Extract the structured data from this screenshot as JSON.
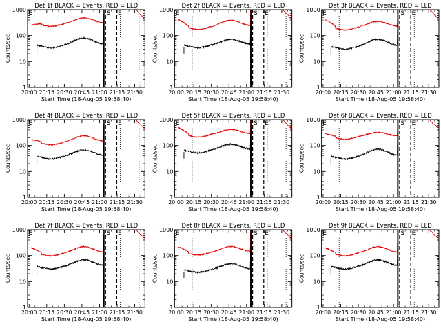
{
  "chart_data": {
    "type": "line",
    "y_scale": "log",
    "ylim": [
      1,
      1000
    ],
    "y_tick_labels": [
      "1",
      "10",
      "100",
      "1000"
    ],
    "y_ticks": [
      1,
      10,
      100,
      1000
    ],
    "ylabel": "Counts/sec",
    "xlabel": "Start Time (18-Aug-05 19:58:40)",
    "x_tick_labels": [
      "20:00",
      "20:15",
      "20:30",
      "20:45",
      "21:00",
      "21:15",
      "21:30"
    ],
    "x_ticks_min": [
      1.33,
      16.33,
      31.33,
      46.33,
      61.33,
      76.33,
      91.33
    ],
    "xlim_min": [
      0,
      100
    ],
    "markers": [
      {
        "label": "S",
        "x_min": 66.5,
        "style": "dashed"
      },
      {
        "label": "E",
        "x_min": 76.0,
        "style": "dashed"
      }
    ],
    "vlines_dotted_min": [
      15.0,
      79.0,
      95.0
    ],
    "vlines_solid_min": [
      65.0
    ],
    "panels": [
      {
        "title": "Det 1f BLACK = Events, RED = LLD",
        "events_base": 45,
        "lld_base": 300,
        "lld_start": 250,
        "events_bump": 1.8,
        "lld_bump": 1.6
      },
      {
        "title": "Det 2f BLACK = Events, RED = LLD",
        "events_base": 45,
        "lld_base": 230,
        "lld_start": 420,
        "events_bump": 1.6,
        "lld_bump": 1.7
      },
      {
        "title": "Det 3f BLACK = Events, RED = LLD",
        "events_base": 40,
        "lld_base": 220,
        "lld_start": 420,
        "events_bump": 1.8,
        "lld_bump": 1.6
      },
      {
        "title": "Det 4f BLACK = Events, RED = LLD",
        "events_base": 40,
        "lld_base": 140,
        "lld_start": 170,
        "events_bump": 1.7,
        "lld_bump": 1.7
      },
      {
        "title": "Det 5f BLACK = Events, RED = LLD",
        "events_base": 70,
        "lld_base": 280,
        "lld_start": 500,
        "events_bump": 1.6,
        "lld_bump": 1.5
      },
      {
        "title": "Det 6f BLACK = Events, RED = LLD",
        "events_base": 40,
        "lld_base": 230,
        "lld_start": 280,
        "events_bump": 1.8,
        "lld_bump": 1.4
      },
      {
        "title": "Det 7f BLACK = Events, RED = LLD",
        "events_base": 40,
        "lld_base": 130,
        "lld_start": 200,
        "events_bump": 1.7,
        "lld_bump": 1.7
      },
      {
        "title": "Det 8f BLACK = Events, RED = LLD",
        "events_base": 30,
        "lld_base": 140,
        "lld_start": 220,
        "events_bump": 1.6,
        "lld_bump": 1.6
      },
      {
        "title": "Det 9f BLACK = Events, RED = LLD",
        "events_base": 40,
        "lld_base": 130,
        "lld_start": 200,
        "events_bump": 1.7,
        "lld_bump": 1.7
      }
    ]
  },
  "colors": {
    "events": "#000000",
    "lld": "#e00000",
    "axes": "#000000",
    "background": "#ffffff"
  }
}
